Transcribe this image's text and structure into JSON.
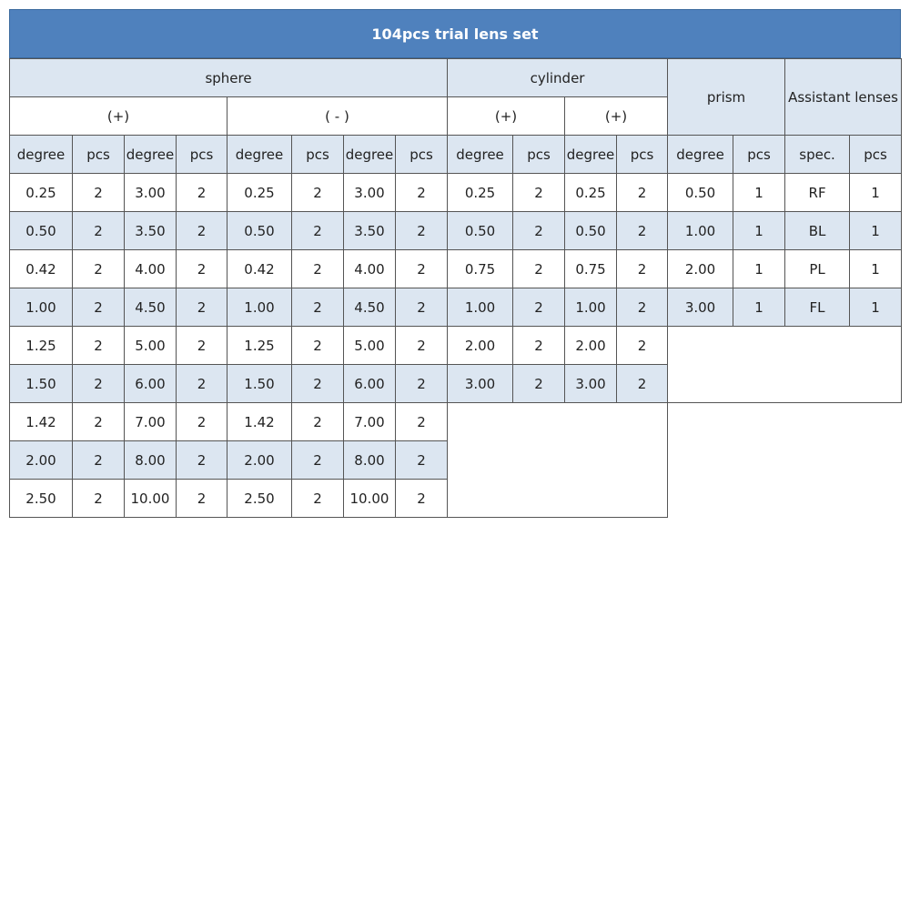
{
  "header": {
    "title": "104pcs trial lens set"
  },
  "table": {
    "groups": [
      "sphere",
      "cylinder",
      "prism",
      "Assistant lenses"
    ],
    "subgroups": [
      "(+)",
      "( - )",
      "(+)",
      "(+)"
    ],
    "columns": [
      "degree",
      "pcs",
      "degree",
      "pcs",
      "degree",
      "pcs",
      "degree",
      "pcs",
      "degree",
      "pcs",
      "degree",
      "pcs",
      "degree",
      "pcs",
      "spec.",
      "pcs"
    ],
    "rows": [
      [
        "0.25",
        "2",
        "3.00",
        "2",
        "0.25",
        "2",
        "3.00",
        "2",
        "0.25",
        "2",
        "0.25",
        "2",
        "0.50",
        "1",
        "RF",
        "1"
      ],
      [
        "0.50",
        "2",
        "3.50",
        "2",
        "0.50",
        "2",
        "3.50",
        "2",
        "0.50",
        "2",
        "0.50",
        "2",
        "1.00",
        "1",
        "BL",
        "1"
      ],
      [
        "0.42",
        "2",
        "4.00",
        "2",
        "0.42",
        "2",
        "4.00",
        "2",
        "0.75",
        "2",
        "0.75",
        "2",
        "2.00",
        "1",
        "PL",
        "1"
      ],
      [
        "1.00",
        "2",
        "4.50",
        "2",
        "1.00",
        "2",
        "4.50",
        "2",
        "1.00",
        "2",
        "1.00",
        "2",
        "3.00",
        "1",
        "FL",
        "1"
      ],
      [
        "1.25",
        "2",
        "5.00",
        "2",
        "1.25",
        "2",
        "5.00",
        "2",
        "2.00",
        "2",
        "2.00",
        "2"
      ],
      [
        "1.50",
        "2",
        "6.00",
        "2",
        "1.50",
        "2",
        "6.00",
        "2",
        "3.00",
        "2",
        "3.00",
        "2"
      ],
      [
        "1.42",
        "2",
        "7.00",
        "2",
        "1.42",
        "2",
        "7.00",
        "2"
      ],
      [
        "2.00",
        "2",
        "8.00",
        "2",
        "2.00",
        "2",
        "8.00",
        "2"
      ],
      [
        "2.50",
        "2",
        "10.00",
        "2",
        "2.50",
        "2",
        "10.00",
        "2"
      ]
    ]
  }
}
